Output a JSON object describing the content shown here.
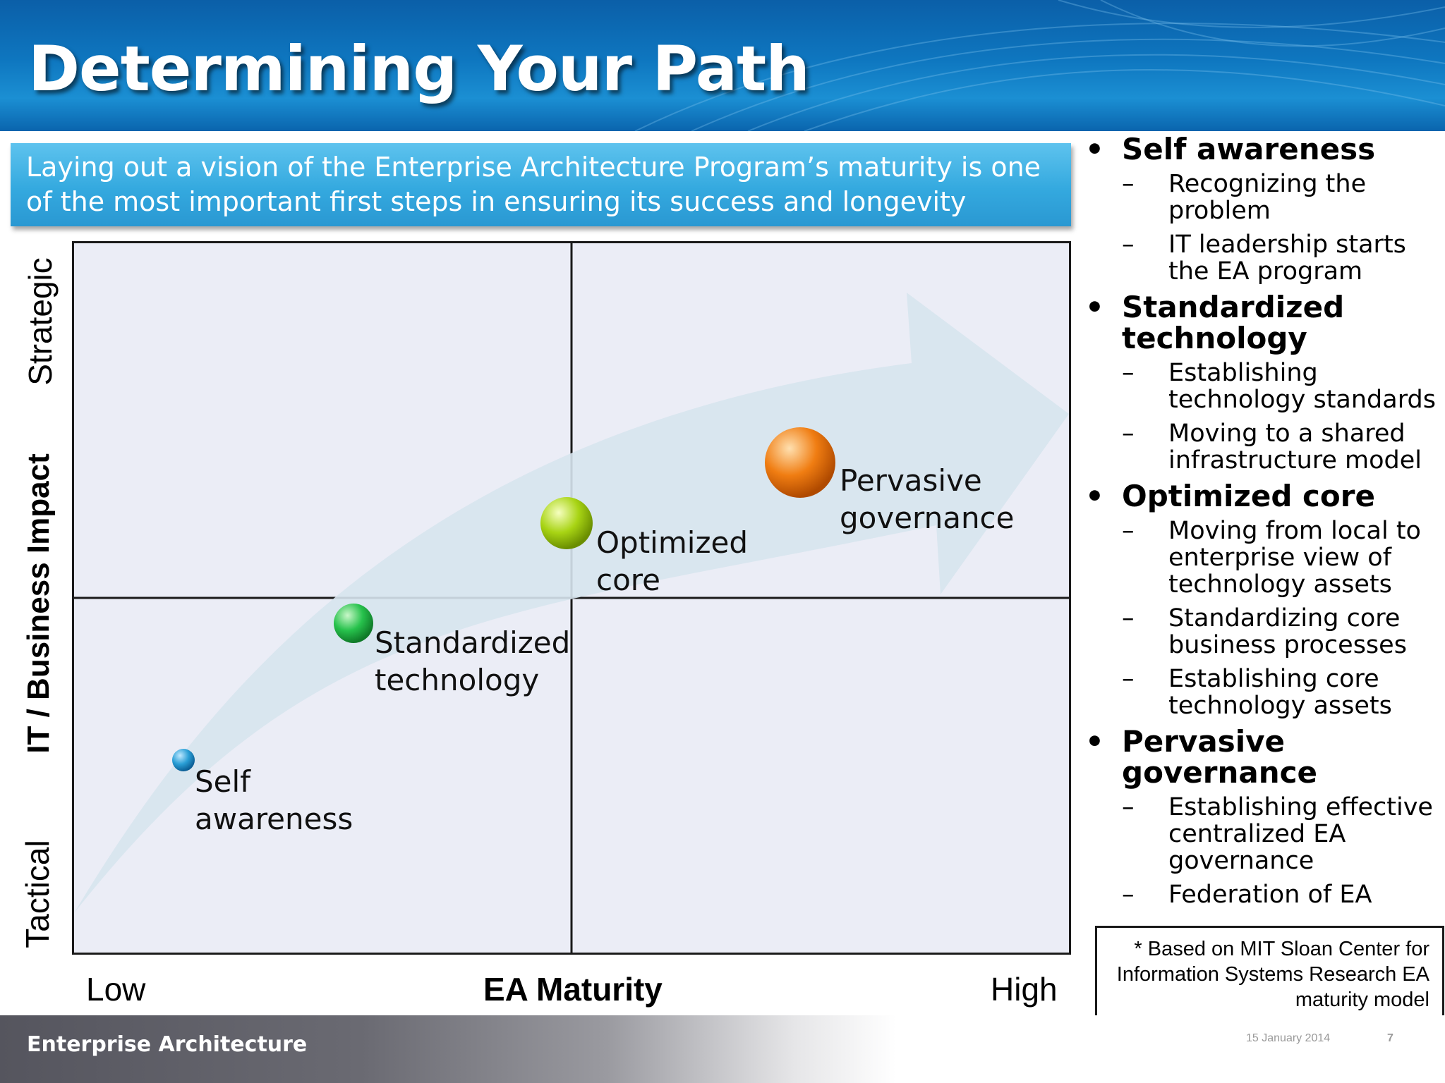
{
  "slide": {
    "title": "Determining Your Path",
    "banner": "Laying out a vision of the Enterprise Architecture Program’s maturity is one of the most important first steps in ensuring its success and longevity"
  },
  "diagram": {
    "y_axis": {
      "top": "Strategic",
      "title": "IT / Business Impact",
      "bottom": "Tactical"
    },
    "x_axis": {
      "low": "Low",
      "title": "EA Maturity",
      "high": "High"
    },
    "stages": [
      {
        "label": "Self awareness",
        "color": "#2a9fd6"
      },
      {
        "label": "Standardized technology",
        "color": "#27c24c"
      },
      {
        "label": "Optimized core",
        "color": "#a8d414"
      },
      {
        "label": "Pervasive governance",
        "color": "#f07d12"
      }
    ]
  },
  "bullets": [
    {
      "heading": "Self awareness",
      "items": [
        "Recognizing the problem",
        "IT leadership starts the EA program"
      ]
    },
    {
      "heading": "Standardized technology",
      "items": [
        "Establishing technology standards",
        "Moving to a shared infrastructure model"
      ]
    },
    {
      "heading": "Optimized core",
      "items": [
        "Moving from local to enterprise view of technology assets",
        "Standardizing core business processes",
        "Establishing core technology assets"
      ]
    },
    {
      "heading": "Pervasive governance",
      "items": [
        "Establishing effective centralized EA governance",
        "Federation of EA"
      ]
    }
  ],
  "note": "* Based on MIT Sloan Center for Information Systems Research EA maturity model",
  "footer": {
    "title": "Enterprise Architecture",
    "date": "15 January 2014",
    "page": "7"
  }
}
